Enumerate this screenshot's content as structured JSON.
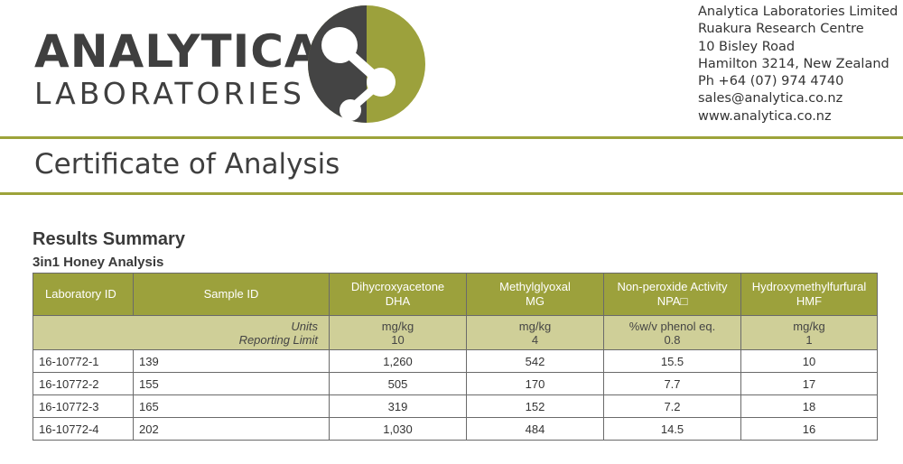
{
  "header": {
    "logo_main": "ANALYTICA",
    "logo_sub": "LABORATORIES",
    "address": [
      "Analytica Laboratories Limited",
      "Ruakura Research Centre",
      "10 Bisley Road",
      "Hamilton 3214, New Zealand",
      "Ph +64 (07) 974 4740",
      "sales@analytica.co.nz",
      "www.analytica.co.nz"
    ],
    "colors": {
      "accent": "#9ca13c",
      "dark": "#3f3f3f"
    }
  },
  "document": {
    "title": "Certificate of Analysis",
    "section_title": "Results Summary",
    "subsection_title": "3in1 Honey Analysis"
  },
  "table": {
    "headers": {
      "lab_id": "Laboratory ID",
      "sample_id": "Sample ID",
      "dha": [
        "Dihycroxyacetone",
        "DHA"
      ],
      "mg": [
        "Methylglyoxal",
        "MG"
      ],
      "npa": [
        "Non-peroxide Activity",
        "NPA□"
      ],
      "hmf": [
        "Hydroxymethylfurfural",
        "HMF"
      ]
    },
    "meta": {
      "units_label": "Units",
      "limit_label": "Reporting Limit",
      "dha": [
        "mg/kg",
        "10"
      ],
      "mg": [
        "mg/kg",
        "4"
      ],
      "npa": [
        "%w/v phenol eq.",
        "0.8"
      ],
      "hmf": [
        "mg/kg",
        "1"
      ]
    },
    "rows": [
      {
        "lab_id": "16-10772-1",
        "sample_id": "139",
        "dha": "1,260",
        "mg": "542",
        "npa": "15.5",
        "hmf": "10"
      },
      {
        "lab_id": "16-10772-2",
        "sample_id": "155",
        "dha": "505",
        "mg": "170",
        "npa": "7.7",
        "hmf": "17"
      },
      {
        "lab_id": "16-10772-3",
        "sample_id": "165",
        "dha": "319",
        "mg": "152",
        "npa": "7.2",
        "hmf": "18"
      },
      {
        "lab_id": "16-10772-4",
        "sample_id": "202",
        "dha": "1,030",
        "mg": "484",
        "npa": "14.5",
        "hmf": "16"
      }
    ]
  }
}
